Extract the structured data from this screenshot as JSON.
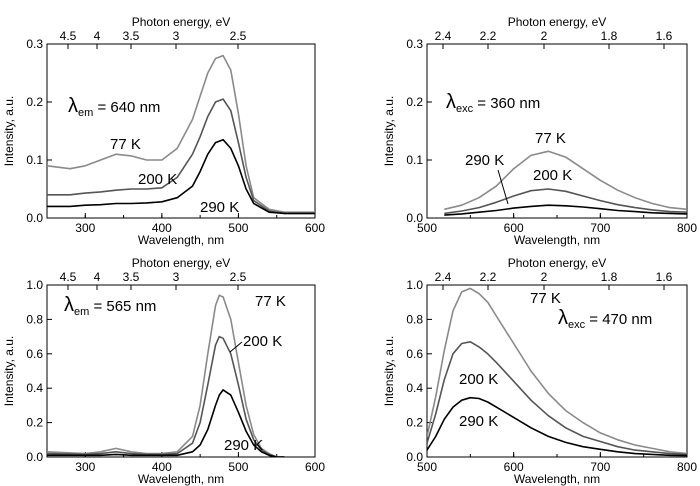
{
  "chart_data": [
    {
      "type": "line",
      "panel": "top-left",
      "xlabel": "Wavelength, nm",
      "ylabel": "Intensity, a.u.",
      "top_axis_label": "Photon energy, eV",
      "xlim": [
        250,
        600
      ],
      "ylim": [
        0,
        0.3
      ],
      "x_ticks": [
        "300",
        "400",
        "500",
        "600"
      ],
      "y_ticks": [
        "0.0",
        "0.1",
        "0.2",
        "0.3"
      ],
      "top_ticks": [
        "4.5",
        "4",
        "3.5",
        "3",
        "2.5"
      ],
      "annotation": {
        "symbol": "λ",
        "sub": "em",
        "text": " = 640 nm"
      },
      "series": [
        {
          "name": "77 K",
          "color": "#8a8a8a",
          "x": [
            250,
            280,
            300,
            320,
            340,
            360,
            380,
            400,
            420,
            440,
            450,
            460,
            470,
            480,
            490,
            500,
            510,
            520,
            540,
            560,
            600
          ],
          "y": [
            0.09,
            0.085,
            0.09,
            0.1,
            0.11,
            0.107,
            0.1,
            0.1,
            0.12,
            0.17,
            0.21,
            0.25,
            0.275,
            0.28,
            0.255,
            0.18,
            0.09,
            0.035,
            0.015,
            0.01,
            0.01
          ]
        },
        {
          "name": "200 K",
          "color": "#555555",
          "x": [
            250,
            280,
            300,
            320,
            340,
            360,
            380,
            400,
            420,
            440,
            450,
            460,
            470,
            480,
            490,
            500,
            510,
            520,
            540,
            560,
            600
          ],
          "y": [
            0.04,
            0.04,
            0.043,
            0.045,
            0.048,
            0.05,
            0.05,
            0.052,
            0.07,
            0.11,
            0.14,
            0.175,
            0.2,
            0.205,
            0.185,
            0.13,
            0.07,
            0.03,
            0.012,
            0.008,
            0.008
          ]
        },
        {
          "name": "290 K",
          "color": "#000000",
          "x": [
            250,
            280,
            300,
            320,
            340,
            360,
            380,
            400,
            420,
            440,
            450,
            460,
            470,
            480,
            490,
            500,
            510,
            520,
            540,
            560,
            600
          ],
          "y": [
            0.02,
            0.02,
            0.022,
            0.023,
            0.025,
            0.025,
            0.026,
            0.028,
            0.035,
            0.055,
            0.08,
            0.11,
            0.13,
            0.135,
            0.12,
            0.09,
            0.05,
            0.025,
            0.01,
            0.008,
            0.008
          ]
        }
      ],
      "curve_labels": [
        "77 K",
        "200 K",
        "290 K"
      ]
    },
    {
      "type": "line",
      "panel": "top-right",
      "xlabel": "Wavelength, nm",
      "ylabel": "Intensity, a.u.",
      "top_axis_label": "Photon energy, eV",
      "xlim": [
        500,
        800
      ],
      "ylim": [
        0,
        0.3
      ],
      "x_ticks": [
        "500",
        "600",
        "700",
        "800"
      ],
      "y_ticks": [
        "0.0",
        "0.1",
        "0.2",
        "0.3"
      ],
      "top_ticks": [
        "2.4",
        "2.2",
        "2",
        "1.8",
        "1.6"
      ],
      "annotation": {
        "symbol": "λ",
        "sub": "exc",
        "text": " = 360 nm"
      },
      "series": [
        {
          "name": "77 K",
          "color": "#8a8a8a",
          "x": [
            520,
            540,
            560,
            580,
            600,
            620,
            640,
            660,
            680,
            700,
            720,
            740,
            760,
            780,
            800
          ],
          "y": [
            0.015,
            0.022,
            0.035,
            0.055,
            0.085,
            0.108,
            0.115,
            0.105,
            0.085,
            0.065,
            0.048,
            0.035,
            0.025,
            0.018,
            0.015
          ]
        },
        {
          "name": "200 K",
          "color": "#555555",
          "x": [
            520,
            540,
            560,
            580,
            600,
            620,
            640,
            660,
            680,
            700,
            720,
            740,
            760,
            780,
            800
          ],
          "y": [
            0.008,
            0.012,
            0.018,
            0.027,
            0.038,
            0.047,
            0.05,
            0.046,
            0.038,
            0.03,
            0.023,
            0.018,
            0.014,
            0.011,
            0.01
          ]
        },
        {
          "name": "290 K",
          "color": "#000000",
          "x": [
            520,
            540,
            560,
            580,
            600,
            620,
            640,
            660,
            680,
            700,
            720,
            740,
            760,
            780,
            800
          ],
          "y": [
            0.005,
            0.007,
            0.01,
            0.013,
            0.017,
            0.02,
            0.022,
            0.021,
            0.019,
            0.016,
            0.013,
            0.011,
            0.009,
            0.008,
            0.007
          ]
        }
      ],
      "curve_labels": [
        "77 K",
        "200 K",
        "290 K"
      ]
    },
    {
      "type": "line",
      "panel": "bottom-left",
      "xlabel": "Wavelength, nm",
      "ylabel": "Intensity, a.u.",
      "top_axis_label": "Photon energy, eV",
      "xlim": [
        250,
        600
      ],
      "ylim": [
        0,
        1.0
      ],
      "x_ticks": [
        "300",
        "400",
        "500",
        "600"
      ],
      "y_ticks": [
        "0.0",
        "0.2",
        "0.4",
        "0.6",
        "0.8",
        "1.0"
      ],
      "top_ticks": [
        "4.5",
        "4",
        "3.5",
        "3",
        "2.5"
      ],
      "annotation": {
        "symbol": "λ",
        "sub": "em",
        "text": " = 565 nm"
      },
      "series": [
        {
          "name": "77 K",
          "color": "#8a8a8a",
          "x": [
            250,
            300,
            320,
            340,
            360,
            380,
            400,
            420,
            440,
            450,
            460,
            470,
            475,
            480,
            490,
            500,
            510,
            520,
            530,
            540,
            550,
            560
          ],
          "y": [
            0.03,
            0.02,
            0.03,
            0.05,
            0.03,
            0.02,
            0.02,
            0.03,
            0.12,
            0.3,
            0.6,
            0.88,
            0.94,
            0.93,
            0.8,
            0.55,
            0.3,
            0.13,
            0.05,
            0.02,
            0.0,
            0.0
          ]
        },
        {
          "name": "200 K",
          "color": "#555555",
          "x": [
            250,
            300,
            320,
            340,
            360,
            380,
            400,
            420,
            440,
            450,
            460,
            470,
            475,
            480,
            490,
            500,
            510,
            520,
            530,
            540,
            550,
            560
          ],
          "y": [
            0.02,
            0.015,
            0.02,
            0.03,
            0.02,
            0.015,
            0.015,
            0.02,
            0.08,
            0.2,
            0.42,
            0.65,
            0.7,
            0.69,
            0.6,
            0.42,
            0.22,
            0.1,
            0.04,
            0.015,
            0.0,
            0.0
          ]
        },
        {
          "name": "290 K",
          "color": "#000000",
          "x": [
            250,
            300,
            320,
            340,
            360,
            380,
            400,
            420,
            440,
            450,
            460,
            470,
            475,
            480,
            490,
            500,
            510,
            520,
            530,
            540,
            550,
            560
          ],
          "y": [
            0.01,
            0.01,
            0.01,
            0.015,
            0.01,
            0.01,
            0.01,
            0.01,
            0.03,
            0.07,
            0.16,
            0.3,
            0.36,
            0.39,
            0.36,
            0.26,
            0.15,
            0.07,
            0.03,
            0.01,
            0.0,
            0.0
          ]
        }
      ],
      "curve_labels": [
        "77 K",
        "200 K",
        "290 K"
      ]
    },
    {
      "type": "line",
      "panel": "bottom-right",
      "xlabel": "Wavelength, nm",
      "ylabel": "Intensity, a.u.",
      "top_axis_label": "Photon energy, eV",
      "xlim": [
        500,
        800
      ],
      "ylim": [
        0,
        1.0
      ],
      "x_ticks": [
        "500",
        "600",
        "700",
        "800"
      ],
      "y_ticks": [
        "0.0",
        "0.2",
        "0.4",
        "0.6",
        "0.8",
        "1.0"
      ],
      "top_ticks": [
        "2.4",
        "2.2",
        "2",
        "1.8",
        "1.6"
      ],
      "annotation": {
        "symbol": "λ",
        "sub": "exc",
        "text": " = 470 nm"
      },
      "series": [
        {
          "name": "77 K",
          "color": "#8a8a8a",
          "x": [
            500,
            510,
            520,
            530,
            540,
            550,
            560,
            570,
            580,
            600,
            620,
            640,
            660,
            680,
            700,
            720,
            740,
            760,
            780,
            800
          ],
          "y": [
            0.12,
            0.35,
            0.62,
            0.85,
            0.96,
            0.98,
            0.95,
            0.9,
            0.82,
            0.66,
            0.5,
            0.37,
            0.27,
            0.2,
            0.14,
            0.1,
            0.07,
            0.05,
            0.03,
            0.02
          ]
        },
        {
          "name": "200 K",
          "color": "#555555",
          "x": [
            500,
            510,
            520,
            530,
            540,
            550,
            560,
            570,
            580,
            600,
            620,
            640,
            660,
            680,
            700,
            720,
            740,
            760,
            780,
            800
          ],
          "y": [
            0.08,
            0.25,
            0.45,
            0.6,
            0.66,
            0.67,
            0.64,
            0.6,
            0.55,
            0.44,
            0.33,
            0.24,
            0.17,
            0.12,
            0.09,
            0.06,
            0.04,
            0.03,
            0.02,
            0.015
          ]
        },
        {
          "name": "290 K",
          "color": "#000000",
          "x": [
            500,
            510,
            520,
            530,
            540,
            550,
            560,
            570,
            580,
            600,
            620,
            640,
            660,
            680,
            700,
            720,
            740,
            760,
            780,
            800
          ],
          "y": [
            0.04,
            0.12,
            0.22,
            0.29,
            0.33,
            0.345,
            0.34,
            0.32,
            0.29,
            0.23,
            0.17,
            0.12,
            0.085,
            0.06,
            0.045,
            0.03,
            0.02,
            0.015,
            0.01,
            0.008
          ]
        }
      ],
      "curve_labels": [
        "77 K",
        "200 K",
        "290 K"
      ]
    }
  ]
}
